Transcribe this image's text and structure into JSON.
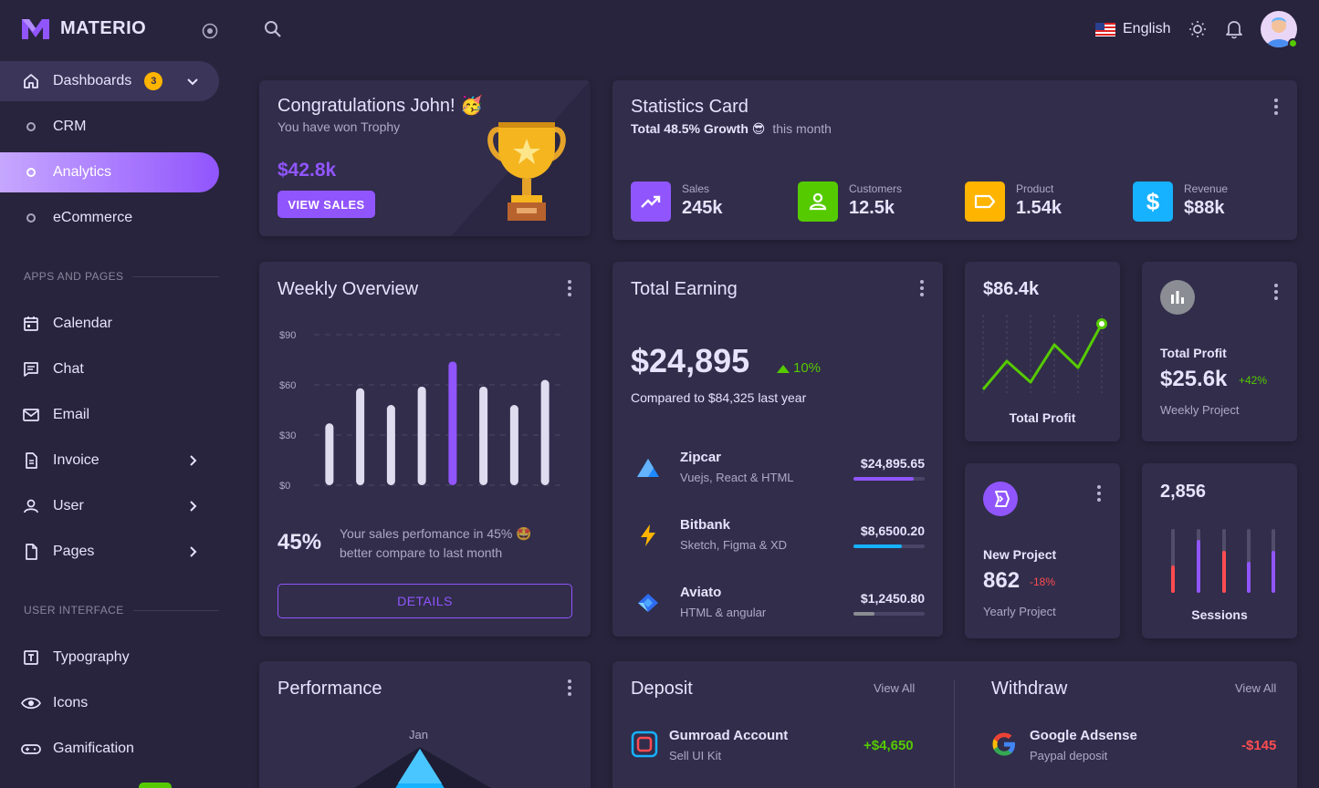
{
  "brand": {
    "name": "MATERIO"
  },
  "sidebar": {
    "dashboards": {
      "label": "Dashboards",
      "badge": "3"
    },
    "dash_items": [
      {
        "label": "CRM"
      },
      {
        "label": "Analytics"
      },
      {
        "label": "eCommerce"
      }
    ],
    "section1": "APPS AND PAGES",
    "apps": [
      {
        "label": "Calendar",
        "icon": "calendar-icon"
      },
      {
        "label": "Chat",
        "icon": "chat-icon"
      },
      {
        "label": "Email",
        "icon": "email-icon"
      },
      {
        "label": "Invoice",
        "icon": "invoice-icon"
      },
      {
        "label": "User",
        "icon": "user-icon"
      },
      {
        "label": "Pages",
        "icon": "pages-icon"
      }
    ],
    "section2": "USER INTERFACE",
    "ui": [
      {
        "label": "Typography",
        "icon": "typography-icon"
      },
      {
        "label": "Icons",
        "icon": "eye-icon"
      },
      {
        "label": "Gamification",
        "icon": "gamepad-icon"
      }
    ]
  },
  "topbar": {
    "language": "English"
  },
  "congrats": {
    "title": "Congratulations John! 🥳",
    "subtitle": "You have won Trophy",
    "amount": "$42.8k",
    "button": "VIEW SALES"
  },
  "statistics": {
    "title": "Statistics Card",
    "growth": "Total 48.5% Growth 😎",
    "period": "this month",
    "items": [
      {
        "label": "Sales",
        "value": "245k",
        "color": "#9155fd",
        "icon": "trending-up-icon"
      },
      {
        "label": "Customers",
        "value": "12.5k",
        "color": "#56ca00",
        "icon": "account-icon"
      },
      {
        "label": "Product",
        "value": "1.54k",
        "color": "#ffb400",
        "icon": "label-icon"
      },
      {
        "label": "Revenue",
        "value": "$88k",
        "color": "#16b1ff",
        "icon": "dollar-icon"
      }
    ]
  },
  "weekly": {
    "title": "Weekly Overview",
    "percent": "45%",
    "description": "Your sales perfomance in 45% 🤩 better compare to last month",
    "button": "DETAILS"
  },
  "chart_data": {
    "type": "bar",
    "categories": [
      "",
      "",
      "",
      "",
      "",
      "",
      "",
      ""
    ],
    "values": [
      37,
      58,
      48,
      59,
      74,
      59,
      48,
      63
    ],
    "highlight_index": 4,
    "ylim": [
      0,
      90
    ],
    "yticks": [
      "$0",
      "$30",
      "$60",
      "$90"
    ],
    "colors": {
      "bar": "#e0dcf0",
      "highlight": "#9155fd"
    }
  },
  "earning": {
    "title": "Total Earning",
    "amount": "$24,895",
    "change": "10%",
    "compare": "Compared to $84,325 last year",
    "items": [
      {
        "name": "Zipcar",
        "sub": "Vuejs, React & HTML",
        "amount": "$24,895.65",
        "progress": 0.85,
        "color": "#9155fd"
      },
      {
        "name": "Bitbank",
        "sub": "Sketch, Figma & XD",
        "amount": "$8,6500.20",
        "progress": 0.68,
        "color": "#16b1ff"
      },
      {
        "name": "Aviato",
        "sub": "HTML & angular",
        "amount": "$1,2450.80",
        "progress": 0.3,
        "color": "#8a8d93"
      }
    ]
  },
  "profit_chart": {
    "value": "$86.4k",
    "label": "Total Profit"
  },
  "total_profit": {
    "label": "Total Profit",
    "value": "$25.6k",
    "change": "+42%",
    "sub": "Weekly Project"
  },
  "new_project": {
    "label": "New Project",
    "value": "862",
    "change": "-18%",
    "sub": "Yearly Project"
  },
  "sessions": {
    "value": "2,856",
    "label": "Sessions"
  },
  "performance": {
    "title": "Performance",
    "axis_label": "Jan"
  },
  "deposit": {
    "title": "Deposit",
    "view_all": "View All",
    "item": {
      "name": "Gumroad Account",
      "sub": "Sell UI Kit",
      "amount": "+$4,650"
    }
  },
  "withdraw": {
    "title": "Withdraw",
    "view_all": "View All",
    "item": {
      "name": "Google Adsense",
      "sub": "Paypal deposit",
      "amount": "-$145"
    }
  }
}
